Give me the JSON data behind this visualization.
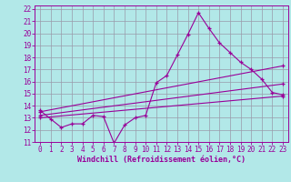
{
  "xlabel": "Windchill (Refroidissement éolien,°C)",
  "bg_color": "#b2e8e8",
  "grid_color": "#9999aa",
  "line_color": "#990099",
  "spine_color": "#990099",
  "xlim": [
    -0.5,
    23.5
  ],
  "ylim": [
    11,
    22.3
  ],
  "xticks": [
    0,
    1,
    2,
    3,
    4,
    5,
    6,
    7,
    8,
    9,
    10,
    11,
    12,
    13,
    14,
    15,
    16,
    17,
    18,
    19,
    20,
    21,
    22,
    23
  ],
  "yticks": [
    11,
    12,
    13,
    14,
    15,
    16,
    17,
    18,
    19,
    20,
    21,
    22
  ],
  "line1_x": [
    0,
    1,
    2,
    3,
    4,
    5,
    6,
    7,
    8,
    9,
    10,
    11,
    12,
    13,
    14,
    15,
    16,
    17,
    18,
    19,
    20,
    21,
    22,
    23
  ],
  "line1_y": [
    13.6,
    12.9,
    12.2,
    12.5,
    12.5,
    13.2,
    13.1,
    10.9,
    12.4,
    13.0,
    13.2,
    15.9,
    16.5,
    18.2,
    19.9,
    21.7,
    20.4,
    19.2,
    18.4,
    17.6,
    17.0,
    16.2,
    15.1,
    14.9
  ],
  "line2_x": [
    0,
    23
  ],
  "line2_y": [
    13.5,
    17.3
  ],
  "line3_x": [
    0,
    23
  ],
  "line3_y": [
    13.2,
    15.8
  ],
  "line4_x": [
    0,
    23
  ],
  "line4_y": [
    13.0,
    14.8
  ],
  "tick_fontsize": 5.5,
  "xlabel_fontsize": 6.0
}
